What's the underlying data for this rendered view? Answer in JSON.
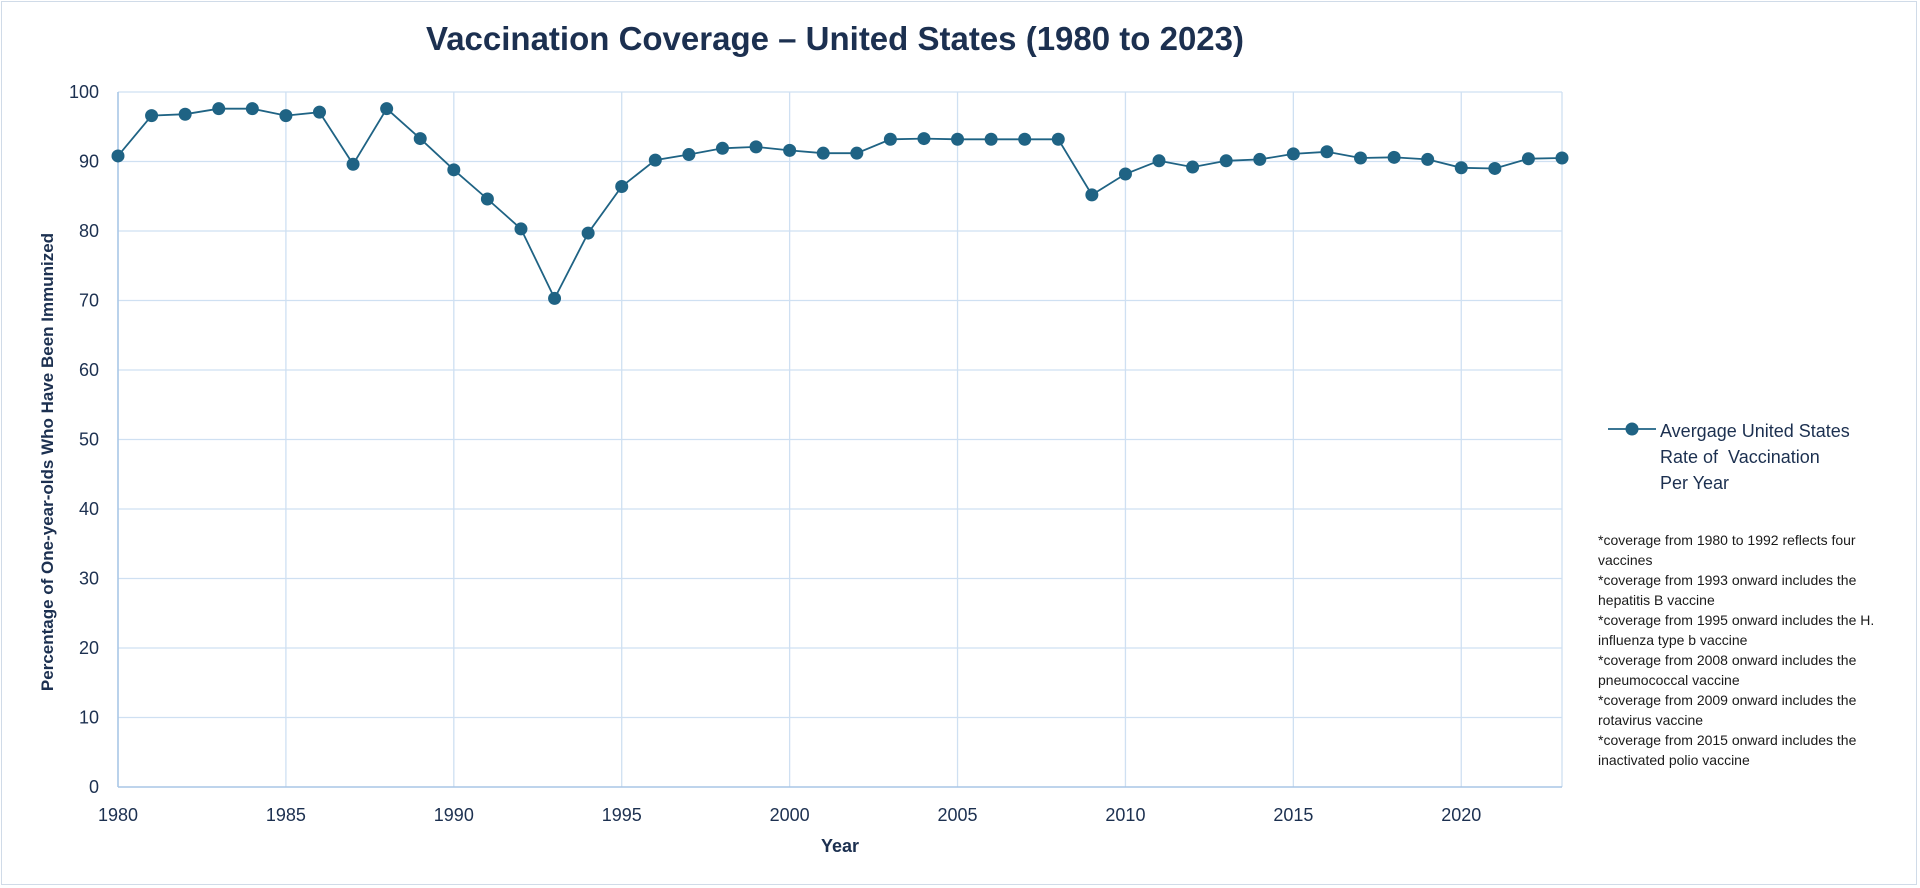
{
  "chart_data": {
    "type": "line",
    "title": "Vaccination Coverage – United States (1980 to 2023)",
    "xlabel": "Year",
    "ylabel": "Percentage of One-year-olds Who Have Been Immunized",
    "xlim": [
      1980,
      2023
    ],
    "ylim": [
      0,
      100
    ],
    "x_ticks": [
      1980,
      1985,
      1990,
      1995,
      2000,
      2005,
      2010,
      2015,
      2020
    ],
    "y_ticks": [
      0,
      10,
      20,
      30,
      40,
      50,
      60,
      70,
      80,
      90,
      100
    ],
    "grid": true,
    "legend_position": "right",
    "series": [
      {
        "name": "Avergage United States Rate of  Vaccination Per Year",
        "color": "#1f6384",
        "x": [
          1980,
          1981,
          1982,
          1983,
          1984,
          1985,
          1986,
          1987,
          1988,
          1989,
          1990,
          1991,
          1992,
          1993,
          1994,
          1995,
          1996,
          1997,
          1998,
          1999,
          2000,
          2001,
          2002,
          2003,
          2004,
          2005,
          2006,
          2007,
          2008,
          2009,
          2010,
          2011,
          2012,
          2013,
          2014,
          2015,
          2016,
          2017,
          2018,
          2019,
          2020,
          2021,
          2022,
          2023
        ],
        "values": [
          90.8,
          96.6,
          96.8,
          97.6,
          97.6,
          96.6,
          97.1,
          89.6,
          97.6,
          93.3,
          88.8,
          84.6,
          80.3,
          70.3,
          79.7,
          86.4,
          90.2,
          91.0,
          91.9,
          92.1,
          91.6,
          91.2,
          91.2,
          93.2,
          93.3,
          93.2,
          93.2,
          93.2,
          93.2,
          85.2,
          88.2,
          90.1,
          89.2,
          90.1,
          90.3,
          91.1,
          91.4,
          90.5,
          90.6,
          90.3,
          89.1,
          89.0,
          90.4,
          90.5
        ]
      }
    ]
  },
  "legend": {
    "line1": "Avergage United States",
    "line2": "Rate of  Vaccination",
    "line3": "Per Year"
  },
  "notes": [
    "*coverage from 1980 to 1992 reflects four vaccines",
    "*coverage from 1993 onward includes the hepatitis B vaccine",
    "*coverage from 1995 onward includes the H. influenza type b vaccine",
    "*coverage from 2008 onward includes the pneumococcal vaccine",
    "*coverage from 2009 onward includes the rotavirus vaccine",
    "*coverage from 2015 onward includes the inactivated polio vaccine"
  ],
  "colors": {
    "series": "#1f6384",
    "text": "#1c3050",
    "grid": "#cfe0f2"
  }
}
